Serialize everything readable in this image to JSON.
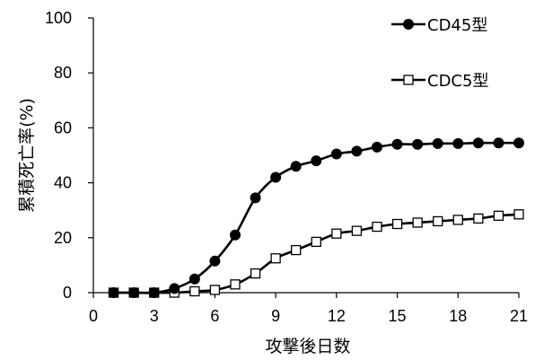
{
  "chart_data": {
    "type": "line",
    "xlabel": "攻撃後日数",
    "ylabel": "累積死亡率(%)",
    "xlim": [
      0,
      21
    ],
    "ylim": [
      0,
      100
    ],
    "xticks": [
      0,
      3,
      6,
      9,
      12,
      15,
      18,
      21
    ],
    "yticks": [
      0,
      20,
      40,
      60,
      80,
      100
    ],
    "grid": false,
    "legend": "top-right",
    "x": [
      1,
      2,
      3,
      4,
      5,
      6,
      7,
      8,
      9,
      10,
      11,
      12,
      13,
      14,
      15,
      16,
      17,
      18,
      19,
      20,
      21
    ],
    "series": [
      {
        "name": "CD45型",
        "marker": "filled-circle",
        "values": [
          0,
          0,
          0,
          1.5,
          5,
          11.5,
          21,
          34.5,
          42,
          46,
          48,
          50.5,
          51.5,
          53,
          54,
          54,
          54.3,
          54.3,
          54.5,
          54.5,
          54.5
        ]
      },
      {
        "name": "CDC5型",
        "marker": "open-square",
        "values": [
          0,
          0,
          0,
          0,
          0.5,
          1,
          3,
          7,
          12.5,
          15.5,
          18.5,
          21.5,
          22.5,
          24,
          25,
          25.5,
          26,
          26.5,
          27,
          28,
          28.5
        ]
      }
    ],
    "colors": {
      "line": "#000000",
      "marker_fill_open": "#ffffff"
    }
  }
}
